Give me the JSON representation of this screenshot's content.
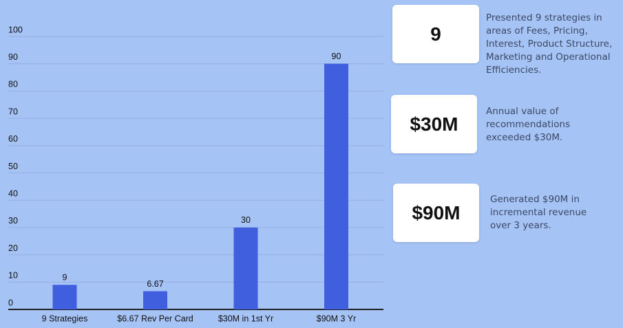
{
  "chart_data": {
    "type": "bar",
    "categories": [
      "9 Strategies",
      "$6.67 Rev Per Card",
      "$30M in 1st Yr",
      "$90M 3 Yr"
    ],
    "values": [
      9,
      6.67,
      30,
      90
    ],
    "color": "#3f5fdf",
    "ylim": [
      0,
      100
    ],
    "yticks": [
      0,
      10,
      20,
      30,
      40,
      50,
      60,
      70,
      80,
      90,
      100
    ],
    "grid": true
  },
  "cards": [
    {
      "value": "9",
      "text": "Presented 9 strategies in areas of Fees, Pricing, Interest, Product Structure, Marketing and Operational Efficiencies."
    },
    {
      "value": "$30M",
      "text": "Annual value of recommendations exceeded $30M."
    },
    {
      "value": "$90M",
      "text": "Generated $90M in incremental revenue over 3 years."
    }
  ]
}
